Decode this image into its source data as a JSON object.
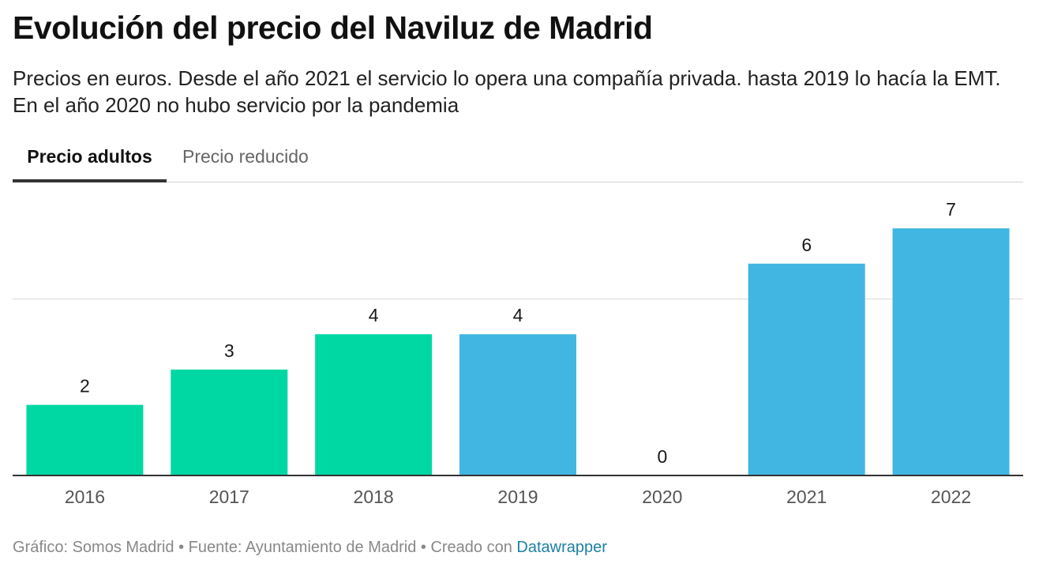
{
  "header": {
    "title": "Evolución del precio del Naviluz de Madrid",
    "subtitle": "Precios en euros. Desde el año 2021 el servicio lo opera una compañía privada. hasta 2019 lo hacía la EMT. En el año 2020 no hubo servicio por la pandemia"
  },
  "tabs": [
    {
      "label": "Precio adultos",
      "active": true
    },
    {
      "label": "Precio reducido",
      "active": false
    }
  ],
  "chart_data": {
    "type": "bar",
    "categories": [
      "2016",
      "2017",
      "2018",
      "2019",
      "2020",
      "2021",
      "2022"
    ],
    "values": [
      2,
      3,
      4,
      4,
      0,
      6,
      7
    ],
    "data_labels": [
      "2",
      "3",
      "4",
      "4",
      "0",
      "6",
      "7"
    ],
    "bar_colors": [
      "#00d8a4",
      "#00d8a4",
      "#00d8a4",
      "#41b6e2",
      "#41b6e2",
      "#41b6e2",
      "#41b6e2"
    ],
    "ylim": [
      0,
      7.5
    ],
    "gridlines": [
      5
    ],
    "grid": true,
    "title": "",
    "xlabel": "",
    "ylabel": ""
  },
  "footer": {
    "credit": "Gráfico: Somos Madrid • Fuente: Ayuntamiento de Madrid • Creado con ",
    "link_label": "Datawrapper"
  }
}
